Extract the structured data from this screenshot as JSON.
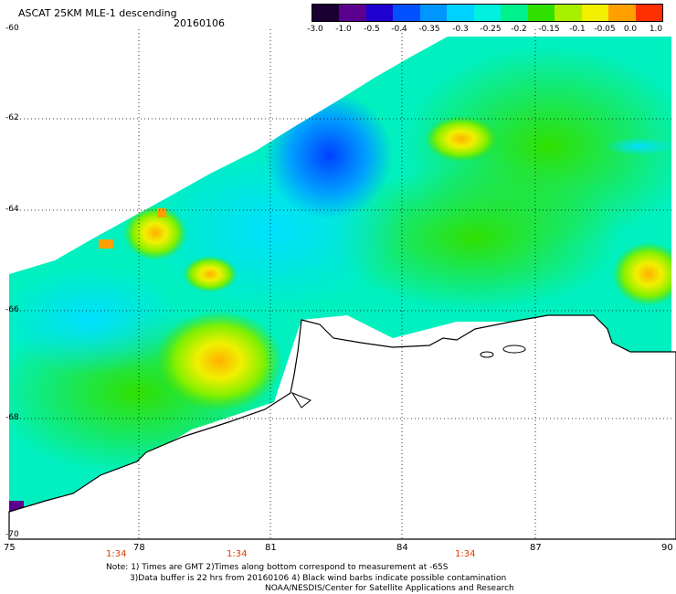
{
  "header": {
    "title": "ASCAT 25KM MLE-1 descending",
    "date": "20160106"
  },
  "colorbar": {
    "labels": [
      "-3.0",
      "-1.0",
      "-0.5",
      "-0.4",
      "-0.35",
      "-0.3",
      "-0.25",
      "-0.2",
      "-0.15",
      "-0.1",
      "-0.05",
      "0.0",
      "1.0"
    ],
    "colors": [
      "#1a0030",
      "#5c0090",
      "#2000d0",
      "#0050ff",
      "#0096ff",
      "#00d2ff",
      "#00f0e0",
      "#00f08c",
      "#30e000",
      "#a8f000",
      "#f0f000",
      "#ffa000",
      "#ff3000"
    ]
  },
  "axes": {
    "lat_labels": [
      "-60",
      "-62",
      "-64",
      "-66",
      "-68",
      "-70"
    ],
    "lon_labels": [
      "75",
      "78",
      "81",
      "84",
      "87",
      "90"
    ],
    "time_labels": [
      "1:34",
      "1:34",
      "1:34"
    ]
  },
  "notes": {
    "line1": "Note: 1) Times are GMT 2)Times along bottom correspond to measurement at -65S",
    "line2": "3)Data buffer is 22 hrs from 20160106 4) Black wind barbs indicate possible contamination",
    "line3": "NOAA/NESDIS/Center for Satellite Applications and Research"
  }
}
